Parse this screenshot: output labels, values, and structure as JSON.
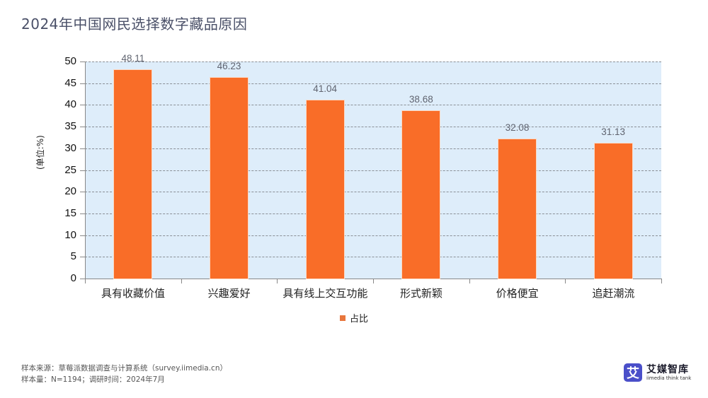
{
  "header": {
    "title": "2024年中国网民选择数字藏品原因"
  },
  "chart_data": {
    "type": "bar",
    "title": "2024年中国网民选择数字藏品原因",
    "categories": [
      "具有收藏价值",
      "兴趣爱好",
      "具有线上交互功能",
      "形式新颖",
      "价格便宜",
      "追赶潮流"
    ],
    "series": [
      {
        "name": "占比",
        "values": [
          48.11,
          46.23,
          41.04,
          38.68,
          32.08,
          31.13
        ],
        "color": "#f96d28"
      }
    ],
    "value_labels": [
      "48.11",
      "46.23",
      "41.04",
      "38.68",
      "32.08",
      "31.13"
    ],
    "xlabel": "",
    "ylabel": "(单位:%)",
    "ylim": [
      0,
      50
    ],
    "yticks": [
      "0",
      "5",
      "10",
      "15",
      "20",
      "25",
      "30",
      "35",
      "40",
      "45",
      "50"
    ],
    "grid": true,
    "legend_position": "bottom",
    "plot_background": "#deedfa"
  },
  "legend": {
    "label": "占比"
  },
  "footer": {
    "source": "样本来源：草莓派数据调查与计算系统（survey.iimedia.cn）",
    "sample": "样本量：N=1194；调研时间：2024年7月"
  },
  "logo": {
    "mark": "艾",
    "cn": "艾媒智库",
    "en": "iimedia think tank"
  }
}
